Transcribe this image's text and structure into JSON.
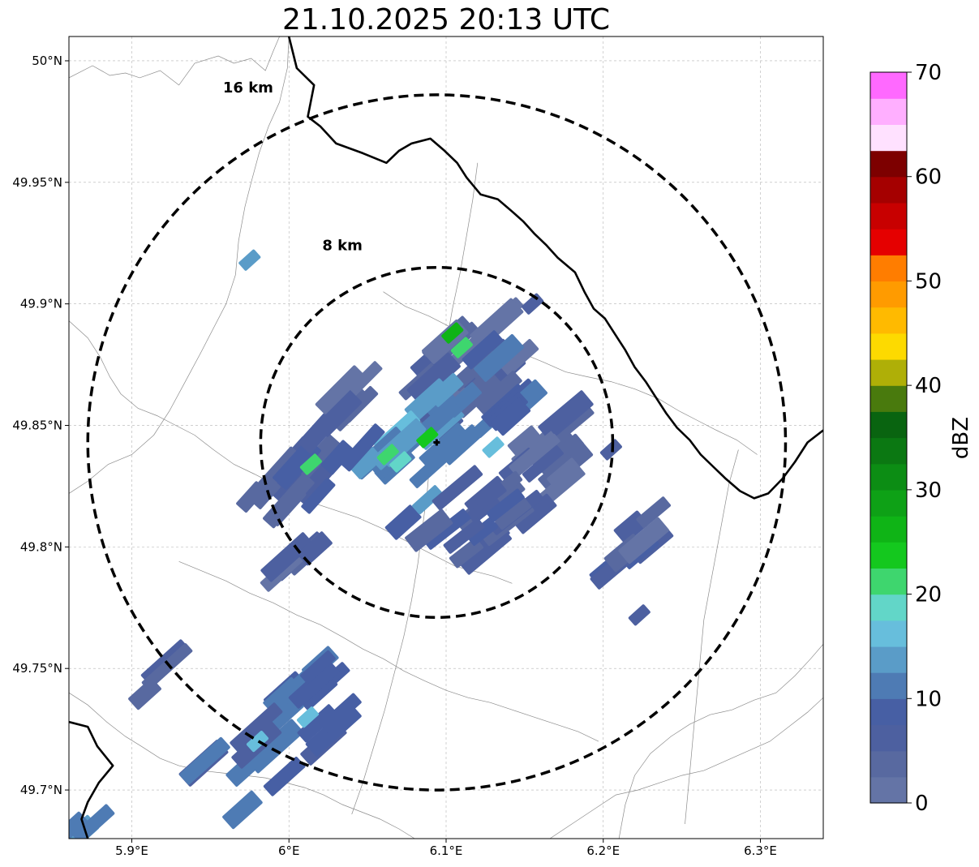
{
  "title": "21.10.2025 20:13 UTC",
  "map": {
    "lon_range": [
      5.86,
      6.34
    ],
    "lat_range": [
      49.68,
      50.01
    ],
    "x_ticks": [
      {
        "value": 5.9,
        "label": "5.9°E"
      },
      {
        "value": 6.0,
        "label": "6°E"
      },
      {
        "value": 6.1,
        "label": "6.1°E"
      },
      {
        "value": 6.2,
        "label": "6.2°E"
      },
      {
        "value": 6.3,
        "label": "6.3°E"
      }
    ],
    "y_ticks": [
      {
        "value": 49.7,
        "label": "49.7°N"
      },
      {
        "value": 49.75,
        "label": "49.75°N"
      },
      {
        "value": 49.8,
        "label": "49.8°N"
      },
      {
        "value": 49.85,
        "label": "49.85°N"
      },
      {
        "value": 49.9,
        "label": "49.9°N"
      },
      {
        "value": 49.95,
        "label": "49.95°N"
      },
      {
        "value": 50.0,
        "label": "50°N"
      }
    ],
    "grid": true,
    "radar_site": {
      "lon": 6.094,
      "lat": 49.843
    },
    "range_rings": [
      {
        "label": "8 km",
        "lon_radius": 0.112,
        "lat_radius": 0.072,
        "label_lon": 6.034,
        "label_lat": 49.922
      },
      {
        "label": "16 km",
        "lon_radius": 0.222,
        "lat_radius": 0.143,
        "label_lon": 5.974,
        "label_lat": 49.987
      }
    ],
    "national_borders": [
      [
        [
          6.0,
          50.01
        ],
        [
          6.005,
          49.997
        ],
        [
          6.016,
          49.99
        ],
        [
          6.012,
          49.977
        ],
        [
          6.02,
          49.973
        ],
        [
          6.03,
          49.966
        ],
        [
          6.047,
          49.962
        ],
        [
          6.062,
          49.958
        ],
        [
          6.07,
          49.963
        ],
        [
          6.078,
          49.966
        ],
        [
          6.09,
          49.968
        ],
        [
          6.099,
          49.963
        ],
        [
          6.107,
          49.958
        ],
        [
          6.113,
          49.952
        ],
        [
          6.122,
          49.945
        ],
        [
          6.133,
          49.943
        ],
        [
          6.142,
          49.938
        ],
        [
          6.149,
          49.934
        ],
        [
          6.156,
          49.929
        ],
        [
          6.164,
          49.924
        ],
        [
          6.171,
          49.919
        ],
        [
          6.182,
          49.913
        ],
        [
          6.188,
          49.905
        ],
        [
          6.194,
          49.898
        ],
        [
          6.201,
          49.894
        ],
        [
          6.207,
          49.888
        ],
        [
          6.214,
          49.881
        ],
        [
          6.22,
          49.874
        ],
        [
          6.227,
          49.868
        ],
        [
          6.233,
          49.862
        ],
        [
          6.24,
          49.855
        ],
        [
          6.247,
          49.849
        ],
        [
          6.255,
          49.844
        ],
        [
          6.262,
          49.838
        ],
        [
          6.27,
          49.833
        ],
        [
          6.278,
          49.828
        ],
        [
          6.287,
          49.823
        ],
        [
          6.296,
          49.82
        ],
        [
          6.305,
          49.822
        ],
        [
          6.314,
          49.828
        ],
        [
          6.322,
          49.835
        ],
        [
          6.33,
          49.843
        ],
        [
          6.34,
          49.848
        ]
      ],
      [
        [
          5.86,
          49.728
        ],
        [
          5.872,
          49.726
        ],
        [
          5.878,
          49.718
        ],
        [
          5.888,
          49.71
        ],
        [
          5.879,
          49.703
        ],
        [
          5.872,
          49.695
        ],
        [
          5.868,
          49.688
        ],
        [
          5.872,
          49.68
        ]
      ]
    ],
    "admin_boundaries": [
      [
        [
          5.86,
          49.993
        ],
        [
          5.875,
          49.998
        ],
        [
          5.886,
          49.994
        ],
        [
          5.896,
          49.995
        ],
        [
          5.905,
          49.993
        ],
        [
          5.918,
          49.996
        ],
        [
          5.93,
          49.99
        ],
        [
          5.94,
          49.999
        ],
        [
          5.955,
          50.002
        ],
        [
          5.965,
          49.999
        ],
        [
          5.976,
          50.001
        ],
        [
          5.985,
          49.996
        ],
        [
          5.99,
          50.004
        ],
        [
          5.994,
          50.01
        ]
      ],
      [
        [
          6.0,
          50.01
        ],
        [
          5.999,
          49.997
        ],
        [
          5.994,
          49.983
        ],
        [
          5.987,
          49.973
        ],
        [
          5.981,
          49.962
        ],
        [
          5.976,
          49.95
        ],
        [
          5.972,
          49.94
        ],
        [
          5.968,
          49.926
        ],
        [
          5.966,
          49.912
        ],
        [
          5.96,
          49.9
        ],
        [
          5.952,
          49.89
        ],
        [
          5.944,
          49.88
        ],
        [
          5.934,
          49.868
        ],
        [
          5.924,
          49.856
        ],
        [
          5.914,
          49.846
        ],
        [
          5.9,
          49.838
        ],
        [
          5.885,
          49.834
        ],
        [
          5.872,
          49.827
        ],
        [
          5.86,
          49.822
        ]
      ],
      [
        [
          5.86,
          49.893
        ],
        [
          5.872,
          49.886
        ],
        [
          5.88,
          49.878
        ],
        [
          5.886,
          49.87
        ],
        [
          5.893,
          49.863
        ],
        [
          5.904,
          49.857
        ],
        [
          5.916,
          49.854
        ],
        [
          5.928,
          49.85
        ],
        [
          5.94,
          49.846
        ],
        [
          5.952,
          49.84
        ],
        [
          5.965,
          49.834
        ],
        [
          5.978,
          49.83
        ],
        [
          5.99,
          49.826
        ],
        [
          6.004,
          49.821
        ],
        [
          6.016,
          49.818
        ],
        [
          6.03,
          49.815
        ],
        [
          6.044,
          49.812
        ],
        [
          6.058,
          49.808
        ],
        [
          6.07,
          49.804
        ],
        [
          6.082,
          49.8
        ],
        [
          6.094,
          49.796
        ],
        [
          6.106,
          49.792
        ],
        [
          6.118,
          49.79
        ],
        [
          6.13,
          49.788
        ],
        [
          6.142,
          49.785
        ]
      ],
      [
        [
          6.06,
          49.905
        ],
        [
          6.074,
          49.899
        ],
        [
          6.089,
          49.895
        ],
        [
          6.104,
          49.89
        ],
        [
          6.118,
          49.887
        ],
        [
          6.133,
          49.884
        ],
        [
          6.147,
          49.88
        ],
        [
          6.162,
          49.876
        ],
        [
          6.176,
          49.872
        ],
        [
          6.19,
          49.87
        ],
        [
          6.205,
          49.868
        ],
        [
          6.22,
          49.865
        ],
        [
          6.235,
          49.861
        ],
        [
          6.248,
          49.856
        ],
        [
          6.26,
          49.852
        ],
        [
          6.272,
          49.848
        ],
        [
          6.285,
          49.844
        ],
        [
          6.298,
          49.838
        ]
      ],
      [
        [
          6.12,
          49.958
        ],
        [
          6.117,
          49.943
        ],
        [
          6.113,
          49.928
        ],
        [
          6.109,
          49.913
        ],
        [
          6.104,
          49.898
        ],
        [
          6.1,
          49.883
        ],
        [
          6.096,
          49.868
        ],
        [
          6.093,
          49.853
        ],
        [
          6.09,
          49.838
        ],
        [
          6.088,
          49.823
        ],
        [
          6.085,
          49.808
        ],
        [
          6.082,
          49.793
        ],
        [
          6.078,
          49.778
        ],
        [
          6.073,
          49.763
        ],
        [
          6.067,
          49.748
        ],
        [
          6.061,
          49.733
        ],
        [
          6.054,
          49.718
        ],
        [
          6.047,
          49.703
        ],
        [
          6.04,
          49.69
        ]
      ],
      [
        [
          5.93,
          49.794
        ],
        [
          5.945,
          49.79
        ],
        [
          5.96,
          49.786
        ],
        [
          5.975,
          49.781
        ],
        [
          5.99,
          49.777
        ],
        [
          6.005,
          49.772
        ],
        [
          6.02,
          49.768
        ],
        [
          6.034,
          49.763
        ],
        [
          6.047,
          49.758
        ],
        [
          6.06,
          49.754
        ],
        [
          6.073,
          49.749
        ],
        [
          6.086,
          49.745
        ],
        [
          6.1,
          49.741
        ],
        [
          6.114,
          49.738
        ],
        [
          6.128,
          49.736
        ],
        [
          6.142,
          49.733
        ],
        [
          6.156,
          49.73
        ],
        [
          6.17,
          49.727
        ],
        [
          6.184,
          49.724
        ],
        [
          6.197,
          49.72
        ]
      ],
      [
        [
          6.21,
          49.68
        ],
        [
          6.214,
          49.694
        ],
        [
          6.22,
          49.706
        ],
        [
          6.23,
          49.715
        ],
        [
          6.243,
          49.722
        ],
        [
          6.255,
          49.727
        ],
        [
          6.268,
          49.731
        ],
        [
          6.282,
          49.733
        ],
        [
          6.296,
          49.737
        ],
        [
          6.31,
          49.74
        ],
        [
          6.322,
          49.747
        ],
        [
          6.332,
          49.754
        ],
        [
          6.34,
          49.76
        ]
      ],
      [
        [
          5.86,
          49.74
        ],
        [
          5.872,
          49.735
        ],
        [
          5.884,
          49.728
        ],
        [
          5.896,
          49.722
        ],
        [
          5.906,
          49.718
        ],
        [
          5.918,
          49.713
        ],
        [
          5.93,
          49.71
        ],
        [
          5.944,
          49.708
        ],
        [
          5.958,
          49.707
        ],
        [
          5.972,
          49.706
        ],
        [
          5.985,
          49.705
        ],
        [
          5.998,
          49.703
        ],
        [
          6.01,
          49.701
        ],
        [
          6.022,
          49.698
        ],
        [
          6.034,
          49.694
        ],
        [
          6.046,
          49.691
        ],
        [
          6.058,
          49.688
        ],
        [
          6.07,
          49.684
        ],
        [
          6.08,
          49.68
        ]
      ],
      [
        [
          6.166,
          49.68
        ],
        [
          6.18,
          49.686
        ],
        [
          6.194,
          49.692
        ],
        [
          6.208,
          49.698
        ],
        [
          6.222,
          49.7
        ],
        [
          6.236,
          49.703
        ],
        [
          6.25,
          49.706
        ],
        [
          6.264,
          49.708
        ],
        [
          6.278,
          49.712
        ],
        [
          6.292,
          49.716
        ],
        [
          6.306,
          49.72
        ],
        [
          6.318,
          49.726
        ],
        [
          6.33,
          49.732
        ],
        [
          6.34,
          49.738
        ]
      ],
      [
        [
          6.286,
          49.84
        ],
        [
          6.28,
          49.826
        ],
        [
          6.276,
          49.812
        ],
        [
          6.272,
          49.798
        ],
        [
          6.268,
          49.784
        ],
        [
          6.264,
          49.77
        ],
        [
          6.262,
          49.756
        ],
        [
          6.26,
          49.742
        ],
        [
          6.258,
          49.728
        ],
        [
          6.256,
          49.714
        ],
        [
          6.254,
          49.7
        ],
        [
          6.252,
          49.686
        ]
      ]
    ],
    "echo_clusters": [
      {
        "lon": 6.112,
        "lat": 49.872,
        "dlon": 0.055,
        "dlat": 0.032,
        "angle": -42,
        "dbz": 4,
        "cells": 24
      },
      {
        "lon": 6.098,
        "lat": 49.843,
        "dlon": 0.06,
        "dlat": 0.036,
        "angle": -42,
        "dbz": 12,
        "cells": 26
      },
      {
        "lon": 6.15,
        "lat": 49.828,
        "dlon": 0.045,
        "dlat": 0.03,
        "angle": -40,
        "dbz": 4,
        "cells": 20
      },
      {
        "lon": 6.12,
        "lat": 49.812,
        "dlon": 0.035,
        "dlat": 0.02,
        "angle": -38,
        "dbz": 6,
        "cells": 12
      },
      {
        "lon": 6.012,
        "lat": 49.83,
        "dlon": 0.042,
        "dlat": 0.026,
        "angle": -48,
        "dbz": 7,
        "cells": 16
      },
      {
        "lon": 6.038,
        "lat": 49.862,
        "dlon": 0.016,
        "dlat": 0.012,
        "angle": -45,
        "dbz": 4,
        "cells": 5
      },
      {
        "lon": 6.006,
        "lat": 49.799,
        "dlon": 0.014,
        "dlat": 0.012,
        "angle": -42,
        "dbz": 3,
        "cells": 5
      },
      {
        "lon": 6.215,
        "lat": 49.8,
        "dlon": 0.026,
        "dlat": 0.014,
        "angle": -40,
        "dbz": 5,
        "cells": 8
      },
      {
        "lon": 5.993,
        "lat": 49.72,
        "dlon": 0.05,
        "dlat": 0.03,
        "angle": -42,
        "dbz": 9,
        "cells": 22
      },
      {
        "lon": 5.917,
        "lat": 49.745,
        "dlon": 0.012,
        "dlat": 0.01,
        "angle": -42,
        "dbz": 3,
        "cells": 3
      },
      {
        "lon": 5.868,
        "lat": 49.688,
        "dlon": 0.012,
        "dlat": 0.01,
        "angle": -42,
        "dbz": 12,
        "cells": 3
      }
    ],
    "echo_highlights": [
      {
        "lon": 6.104,
        "lat": 49.888,
        "dbz": 27
      },
      {
        "lon": 6.11,
        "lat": 49.882,
        "dbz": 20
      },
      {
        "lon": 6.088,
        "lat": 49.845,
        "dbz": 23
      },
      {
        "lon": 6.071,
        "lat": 49.835,
        "dbz": 19
      },
      {
        "lon": 6.063,
        "lat": 49.838,
        "dbz": 21
      },
      {
        "lon": 6.13,
        "lat": 49.841,
        "dbz": 17
      },
      {
        "lon": 6.014,
        "lat": 49.834,
        "dbz": 21
      },
      {
        "lon": 5.98,
        "lat": 49.72,
        "dbz": 17
      },
      {
        "lon": 6.012,
        "lat": 49.73,
        "dbz": 17
      },
      {
        "lon": 5.975,
        "lat": 49.918,
        "dbz": 13
      },
      {
        "lon": 6.155,
        "lat": 49.9,
        "dbz": 5
      },
      {
        "lon": 6.205,
        "lat": 49.84,
        "dbz": 5
      },
      {
        "lon": 6.223,
        "lat": 49.772,
        "dbz": 5
      }
    ]
  },
  "colorbar": {
    "label": "dBZ",
    "min": 0,
    "max": 70,
    "step": 2.5,
    "ticks": [
      {
        "value": 0,
        "label": "0"
      },
      {
        "value": 10,
        "label": "10"
      },
      {
        "value": 20,
        "label": "20"
      },
      {
        "value": 30,
        "label": "30"
      },
      {
        "value": 40,
        "label": "40"
      },
      {
        "value": 50,
        "label": "50"
      },
      {
        "value": 60,
        "label": "60"
      },
      {
        "value": 70,
        "label": "70"
      }
    ],
    "colors": [
      "#6474a6",
      "#5869a0",
      "#4d60a0",
      "#475fa4",
      "#4e7bb4",
      "#5a9cc8",
      "#67bedc",
      "#62d6c8",
      "#3ed66e",
      "#14c81e",
      "#0fb416",
      "#0ea116",
      "#0c8d14",
      "#0b7812",
      "#096410",
      "#497a0d",
      "#afaf07",
      "#fdda00",
      "#ffba00",
      "#ff9b00",
      "#ff7d00",
      "#e50000",
      "#c80000",
      "#a50000",
      "#7d0000",
      "#ffe1ff",
      "#ffafff",
      "#ff69ff",
      "#f032ef"
    ]
  }
}
